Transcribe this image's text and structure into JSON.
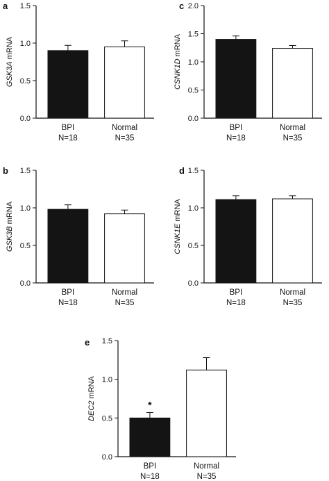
{
  "chart_data": [
    {
      "type": "bar",
      "panel": "a",
      "ylabel_gene": "GSK3A",
      "ylabel_suffix": " mRNA",
      "ylim": [
        0,
        1.5
      ],
      "yticks": [
        "0.0",
        "0.5",
        "1.0",
        "1.5"
      ],
      "categories": [
        "BPI",
        "Normal"
      ],
      "category_n": [
        "N=18",
        "N=35"
      ],
      "values": [
        0.9,
        0.95
      ],
      "errors": [
        0.07,
        0.08
      ],
      "bar_colors": [
        "#141414",
        "#ffffff"
      ],
      "annotations": [
        "",
        ""
      ]
    },
    {
      "type": "bar",
      "panel": "b",
      "ylabel_gene": "GSK3B",
      "ylabel_suffix": " mRNA",
      "ylim": [
        0,
        1.5
      ],
      "yticks": [
        "0.0",
        "0.5",
        "1.0",
        "1.5"
      ],
      "categories": [
        "BPI",
        "Normal"
      ],
      "category_n": [
        "N=18",
        "N=35"
      ],
      "values": [
        0.98,
        0.92
      ],
      "errors": [
        0.06,
        0.05
      ],
      "bar_colors": [
        "#141414",
        "#ffffff"
      ],
      "annotations": [
        "",
        ""
      ]
    },
    {
      "type": "bar",
      "panel": "c",
      "ylabel_gene": "CSNK1D",
      "ylabel_suffix": " mRNA",
      "ylim": [
        0,
        2.0
      ],
      "yticks": [
        "0.0",
        "0.5",
        "1.0",
        "1.5",
        "2.0"
      ],
      "categories": [
        "BPI",
        "Normal"
      ],
      "category_n": [
        "N=18",
        "N=35"
      ],
      "values": [
        1.4,
        1.24
      ],
      "errors": [
        0.06,
        0.05
      ],
      "bar_colors": [
        "#141414",
        "#ffffff"
      ],
      "annotations": [
        "",
        ""
      ]
    },
    {
      "type": "bar",
      "panel": "d",
      "ylabel_gene": "CSNK1E",
      "ylabel_suffix": " mRNA",
      "ylim": [
        0,
        1.5
      ],
      "yticks": [
        "0.0",
        "0.5",
        "1.0",
        "1.5"
      ],
      "categories": [
        "BPI",
        "Normal"
      ],
      "category_n": [
        "N=18",
        "N=35"
      ],
      "values": [
        1.11,
        1.12
      ],
      "errors": [
        0.05,
        0.04
      ],
      "bar_colors": [
        "#141414",
        "#ffffff"
      ],
      "annotations": [
        "",
        ""
      ]
    },
    {
      "type": "bar",
      "panel": "e",
      "ylabel_gene": "DEC2",
      "ylabel_suffix": " mRNA",
      "ylim": [
        0,
        1.5
      ],
      "yticks": [
        "0.0",
        "0.5",
        "1.0",
        "1.5"
      ],
      "categories": [
        "BPI",
        "Normal"
      ],
      "category_n": [
        "N=18",
        "N=35"
      ],
      "values": [
        0.5,
        1.12
      ],
      "errors": [
        0.07,
        0.16
      ],
      "bar_colors": [
        "#141414",
        "#ffffff"
      ],
      "annotations": [
        "*",
        ""
      ]
    }
  ]
}
